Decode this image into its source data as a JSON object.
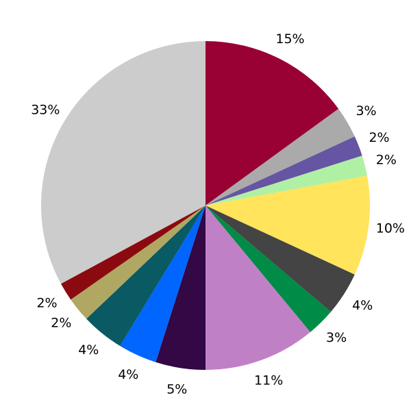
{
  "chart_data": {
    "type": "pie",
    "start": "top",
    "direction": "clockwise",
    "slices": [
      {
        "value": 15.0,
        "label": "15%",
        "color": "#990033"
      },
      {
        "value": 3.1,
        "label": "3%",
        "color": "#aaaaaa"
      },
      {
        "value": 2.0,
        "label": "2%",
        "color": "#6655a3"
      },
      {
        "value": 2.0,
        "label": "2%",
        "color": "#b0f0a4"
      },
      {
        "value": 9.8,
        "label": "10%",
        "color": "#ffe45c"
      },
      {
        "value": 4.3,
        "label": "4%",
        "color": "#444444"
      },
      {
        "value": 2.8,
        "label": "3%",
        "color": "#008c46"
      },
      {
        "value": 11.0,
        "label": "11%",
        "color": "#c080c6"
      },
      {
        "value": 4.9,
        "label": "5%",
        "color": "#330844"
      },
      {
        "value": 3.8,
        "label": "4%",
        "color": "#0066ff"
      },
      {
        "value": 4.2,
        "label": "4%",
        "color": "#0a5a64"
      },
      {
        "value": 2.4,
        "label": "2%",
        "color": "#b0a862"
      },
      {
        "value": 1.8,
        "label": "2%",
        "color": "#8b0a10"
      },
      {
        "value": 32.9,
        "label": "33%",
        "color": "#cccccc"
      }
    ]
  }
}
